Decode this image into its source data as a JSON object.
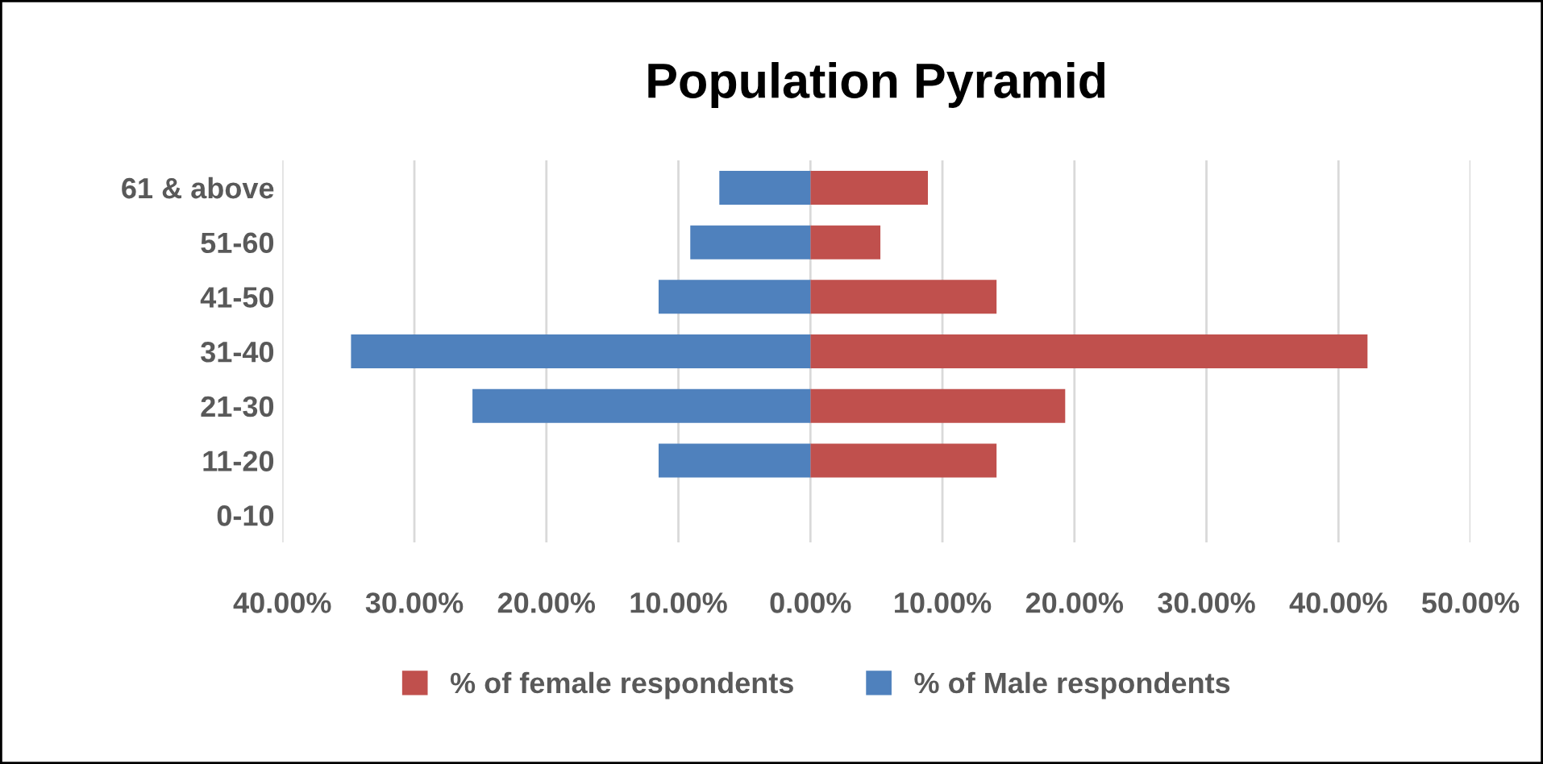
{
  "chart_data": {
    "type": "bar",
    "orientation": "horizontal",
    "title": "Population Pyramid",
    "categories": [
      "61 & above",
      "51-60",
      "41-50",
      "31-40",
      "21-30",
      "11-20",
      "0-10"
    ],
    "series": [
      {
        "name": "% of female respondents",
        "color": "#c0504d",
        "values": [
          8.9,
          5.3,
          14.1,
          42.2,
          19.3,
          14.1,
          0
        ]
      },
      {
        "name": "% of Male respondents",
        "color": "#4f81bd",
        "values": [
          -6.9,
          -9.1,
          -11.5,
          -34.8,
          -25.6,
          -11.5,
          0
        ]
      }
    ],
    "xlim": [
      -40,
      50
    ],
    "xticks": [
      {
        "value": -40,
        "label": "40.00%"
      },
      {
        "value": -30,
        "label": "30.00%"
      },
      {
        "value": -20,
        "label": "20.00%"
      },
      {
        "value": -10,
        "label": "10.00%"
      },
      {
        "value": 0,
        "label": "0.00%"
      },
      {
        "value": 10,
        "label": "10.00%"
      },
      {
        "value": 20,
        "label": "20.00%"
      },
      {
        "value": 30,
        "label": "30.00%"
      },
      {
        "value": 40,
        "label": "40.00%"
      },
      {
        "value": 50,
        "label": "50.00%"
      }
    ],
    "stacked": true,
    "grid": "x",
    "legend": "bottom"
  }
}
